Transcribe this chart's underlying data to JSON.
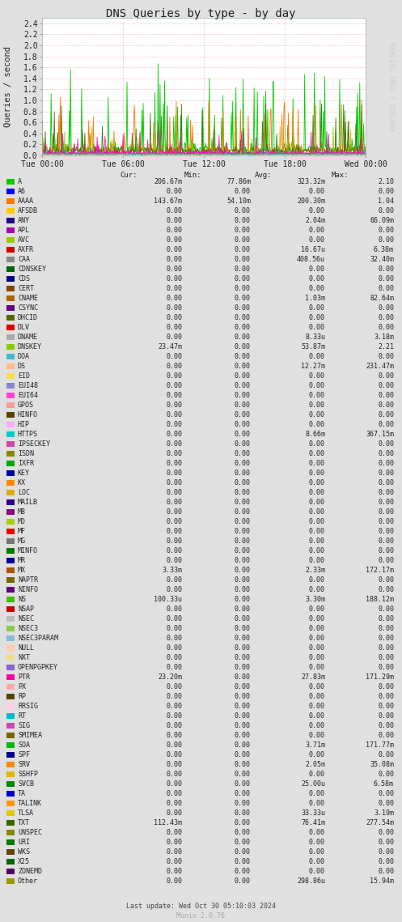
{
  "title": "DNS Queries by type - by day",
  "ylabel": "Queries / second",
  "watermark": "RRDTOOL / TOBI OETIKER",
  "footer": "Munin 2.0.76",
  "last_update": "Last update: Wed Oct 30 05:10:03 2024",
  "bg_color": "#e0e0e0",
  "plot_bg_color": "#ffffff",
  "yticks": [
    0.0,
    0.2,
    0.4,
    0.6,
    0.8,
    1.0,
    1.2,
    1.4,
    1.6,
    1.8,
    2.0,
    2.2,
    2.4
  ],
  "ylim": [
    0,
    2.5
  ],
  "xtick_labels": [
    "Tue 00:00",
    "Tue 06:00",
    "Tue 12:00",
    "Tue 18:00",
    "Wed 00:00"
  ],
  "entries": [
    {
      "name": "A",
      "color": "#00cc00",
      "cur": "206.67m",
      "min": "77.86m",
      "avg": "323.32m",
      "max": "2.10"
    },
    {
      "name": "A6",
      "color": "#0000ff",
      "cur": "0.00",
      "min": "0.00",
      "avg": "0.00",
      "max": "0.00"
    },
    {
      "name": "AAAA",
      "color": "#ff7700",
      "cur": "143.67m",
      "min": "54.10m",
      "avg": "200.30m",
      "max": "1.04"
    },
    {
      "name": "AFSDB",
      "color": "#ffcc00",
      "cur": "0.00",
      "min": "0.00",
      "avg": "0.00",
      "max": "0.00"
    },
    {
      "name": "ANY",
      "color": "#220088",
      "cur": "0.00",
      "min": "0.00",
      "avg": "2.04m",
      "max": "66.09m"
    },
    {
      "name": "APL",
      "color": "#aa00aa",
      "cur": "0.00",
      "min": "0.00",
      "avg": "0.00",
      "max": "0.00"
    },
    {
      "name": "AVC",
      "color": "#99cc00",
      "cur": "0.00",
      "min": "0.00",
      "avg": "0.00",
      "max": "0.00"
    },
    {
      "name": "AXFR",
      "color": "#cc0000",
      "cur": "0.00",
      "min": "0.00",
      "avg": "16.67u",
      "max": "6.38m"
    },
    {
      "name": "CAA",
      "color": "#888888",
      "cur": "0.00",
      "min": "0.00",
      "avg": "408.56u",
      "max": "32.40m"
    },
    {
      "name": "CDNSKEY",
      "color": "#006600",
      "cur": "0.00",
      "min": "0.00",
      "avg": "0.00",
      "max": "0.00"
    },
    {
      "name": "CDS",
      "color": "#000088",
      "cur": "0.00",
      "min": "0.00",
      "avg": "0.00",
      "max": "0.00"
    },
    {
      "name": "CERT",
      "color": "#884400",
      "cur": "0.00",
      "min": "0.00",
      "avg": "0.00",
      "max": "0.00"
    },
    {
      "name": "CNAME",
      "color": "#aa6600",
      "cur": "0.00",
      "min": "0.00",
      "avg": "1.03m",
      "max": "82.64m"
    },
    {
      "name": "CSYNC",
      "color": "#660088",
      "cur": "0.00",
      "min": "0.00",
      "avg": "0.00",
      "max": "0.00"
    },
    {
      "name": "DHCID",
      "color": "#556600",
      "cur": "0.00",
      "min": "0.00",
      "avg": "0.00",
      "max": "0.00"
    },
    {
      "name": "DLV",
      "color": "#dd0000",
      "cur": "0.00",
      "min": "0.00",
      "avg": "0.00",
      "max": "0.00"
    },
    {
      "name": "DNAME",
      "color": "#aaaaaa",
      "cur": "0.00",
      "min": "0.00",
      "avg": "8.33u",
      "max": "3.18m"
    },
    {
      "name": "DNSKEY",
      "color": "#88cc00",
      "cur": "23.47m",
      "min": "0.00",
      "avg": "53.87m",
      "max": "2.21"
    },
    {
      "name": "DOA",
      "color": "#44bbcc",
      "cur": "0.00",
      "min": "0.00",
      "avg": "0.00",
      "max": "0.00"
    },
    {
      "name": "DS",
      "color": "#ffbb88",
      "cur": "0.00",
      "min": "0.00",
      "avg": "12.27m",
      "max": "231.47m"
    },
    {
      "name": "EID",
      "color": "#ffdd44",
      "cur": "0.00",
      "min": "0.00",
      "avg": "0.00",
      "max": "0.00"
    },
    {
      "name": "EUI48",
      "color": "#8888cc",
      "cur": "0.00",
      "min": "0.00",
      "avg": "0.00",
      "max": "0.00"
    },
    {
      "name": "EUI64",
      "color": "#ff44cc",
      "cur": "0.00",
      "min": "0.00",
      "avg": "0.00",
      "max": "0.00"
    },
    {
      "name": "GPOS",
      "color": "#ff9999",
      "cur": "0.00",
      "min": "0.00",
      "avg": "0.00",
      "max": "0.00"
    },
    {
      "name": "HINFO",
      "color": "#554400",
      "cur": "0.00",
      "min": "0.00",
      "avg": "0.00",
      "max": "0.00"
    },
    {
      "name": "HIP",
      "color": "#ffaaff",
      "cur": "0.00",
      "min": "0.00",
      "avg": "0.00",
      "max": "0.00"
    },
    {
      "name": "HTTPS",
      "color": "#00cccc",
      "cur": "0.00",
      "min": "0.00",
      "avg": "8.66m",
      "max": "367.15m"
    },
    {
      "name": "IPSECKEY",
      "color": "#cc44aa",
      "cur": "0.00",
      "min": "0.00",
      "avg": "0.00",
      "max": "0.00"
    },
    {
      "name": "ISDN",
      "color": "#888800",
      "cur": "0.00",
      "min": "0.00",
      "avg": "0.00",
      "max": "0.00"
    },
    {
      "name": "IXFR",
      "color": "#00aa00",
      "cur": "0.00",
      "min": "0.00",
      "avg": "0.00",
      "max": "0.00"
    },
    {
      "name": "KEY",
      "color": "#0000aa",
      "cur": "0.00",
      "min": "0.00",
      "avg": "0.00",
      "max": "0.00"
    },
    {
      "name": "KX",
      "color": "#ff8800",
      "cur": "0.00",
      "min": "0.00",
      "avg": "0.00",
      "max": "0.00"
    },
    {
      "name": "LOC",
      "color": "#ddaa00",
      "cur": "0.00",
      "min": "0.00",
      "avg": "0.00",
      "max": "0.00"
    },
    {
      "name": "MAILB",
      "color": "#330088",
      "cur": "0.00",
      "min": "0.00",
      "avg": "0.00",
      "max": "0.00"
    },
    {
      "name": "MB",
      "color": "#880088",
      "cur": "0.00",
      "min": "0.00",
      "avg": "0.00",
      "max": "0.00"
    },
    {
      "name": "MD",
      "color": "#aacc00",
      "cur": "0.00",
      "min": "0.00",
      "avg": "0.00",
      "max": "0.00"
    },
    {
      "name": "MF",
      "color": "#ee0000",
      "cur": "0.00",
      "min": "0.00",
      "avg": "0.00",
      "max": "0.00"
    },
    {
      "name": "MG",
      "color": "#777777",
      "cur": "0.00",
      "min": "0.00",
      "avg": "0.00",
      "max": "0.00"
    },
    {
      "name": "MINFO",
      "color": "#007700",
      "cur": "0.00",
      "min": "0.00",
      "avg": "0.00",
      "max": "0.00"
    },
    {
      "name": "MR",
      "color": "#000099",
      "cur": "0.00",
      "min": "0.00",
      "avg": "0.00",
      "max": "0.00"
    },
    {
      "name": "MX",
      "color": "#aa5500",
      "cur": "3.33m",
      "min": "0.00",
      "avg": "2.33m",
      "max": "172.17m"
    },
    {
      "name": "NAPTR",
      "color": "#776600",
      "cur": "0.00",
      "min": "0.00",
      "avg": "0.00",
      "max": "0.00"
    },
    {
      "name": "NINFO",
      "color": "#660077",
      "cur": "0.00",
      "min": "0.00",
      "avg": "0.00",
      "max": "0.00"
    },
    {
      "name": "NS",
      "color": "#44bb00",
      "cur": "100.33u",
      "min": "0.00",
      "avg": "3.30m",
      "max": "188.12m"
    },
    {
      "name": "NSAP",
      "color": "#cc0000",
      "cur": "0.00",
      "min": "0.00",
      "avg": "0.00",
      "max": "0.00"
    },
    {
      "name": "NSEC",
      "color": "#bbbbbb",
      "cur": "0.00",
      "min": "0.00",
      "avg": "0.00",
      "max": "0.00"
    },
    {
      "name": "NSEC3",
      "color": "#88cc44",
      "cur": "0.00",
      "min": "0.00",
      "avg": "0.00",
      "max": "0.00"
    },
    {
      "name": "NSEC3PARAM",
      "color": "#88bbcc",
      "cur": "0.00",
      "min": "0.00",
      "avg": "0.00",
      "max": "0.00"
    },
    {
      "name": "NULL",
      "color": "#ffccaa",
      "cur": "0.00",
      "min": "0.00",
      "avg": "0.00",
      "max": "0.00"
    },
    {
      "name": "NXT",
      "color": "#eedd88",
      "cur": "0.00",
      "min": "0.00",
      "avg": "0.00",
      "max": "0.00"
    },
    {
      "name": "OPENPGPKEY",
      "color": "#8866cc",
      "cur": "0.00",
      "min": "0.00",
      "avg": "0.00",
      "max": "0.00"
    },
    {
      "name": "PTR",
      "color": "#ff00aa",
      "cur": "23.20m",
      "min": "0.00",
      "avg": "27.83m",
      "max": "171.29m"
    },
    {
      "name": "PX",
      "color": "#ffaaaa",
      "cur": "0.00",
      "min": "0.00",
      "avg": "0.00",
      "max": "0.00"
    },
    {
      "name": "RP",
      "color": "#554400",
      "cur": "0.00",
      "min": "0.00",
      "avg": "0.00",
      "max": "0.00"
    },
    {
      "name": "RRSIG",
      "color": "#ffccee",
      "cur": "0.00",
      "min": "0.00",
      "avg": "0.00",
      "max": "0.00"
    },
    {
      "name": "RT",
      "color": "#00bbcc",
      "cur": "0.00",
      "min": "0.00",
      "avg": "0.00",
      "max": "0.00"
    },
    {
      "name": "SIG",
      "color": "#cc44bb",
      "cur": "0.00",
      "min": "0.00",
      "avg": "0.00",
      "max": "0.00"
    },
    {
      "name": "SMIMEA",
      "color": "#776600",
      "cur": "0.00",
      "min": "0.00",
      "avg": "0.00",
      "max": "0.00"
    },
    {
      "name": "SOA",
      "color": "#00bb00",
      "cur": "0.00",
      "min": "0.00",
      "avg": "3.71m",
      "max": "171.77m"
    },
    {
      "name": "SPF",
      "color": "#000088",
      "cur": "0.00",
      "min": "0.00",
      "avg": "0.00",
      "max": "0.00"
    },
    {
      "name": "SRV",
      "color": "#ff8800",
      "cur": "0.00",
      "min": "0.00",
      "avg": "2.05m",
      "max": "35.08m"
    },
    {
      "name": "SSHFP",
      "color": "#ddbb00",
      "cur": "0.00",
      "min": "0.00",
      "avg": "0.00",
      "max": "0.00"
    },
    {
      "name": "SVCB",
      "color": "#008800",
      "cur": "0.00",
      "min": "0.00",
      "avg": "25.00u",
      "max": "6.58m"
    },
    {
      "name": "TA",
      "color": "#0000cc",
      "cur": "0.00",
      "min": "0.00",
      "avg": "0.00",
      "max": "0.00"
    },
    {
      "name": "TALINK",
      "color": "#ff9900",
      "cur": "0.00",
      "min": "0.00",
      "avg": "0.00",
      "max": "0.00"
    },
    {
      "name": "TLSA",
      "color": "#ddcc00",
      "cur": "0.00",
      "min": "0.00",
      "avg": "33.33u",
      "max": "3.19m"
    },
    {
      "name": "TXT",
      "color": "#336600",
      "cur": "112.43m",
      "min": "0.00",
      "avg": "76.41m",
      "max": "277.54m"
    },
    {
      "name": "UNSPEC",
      "color": "#888800",
      "cur": "0.00",
      "min": "0.00",
      "avg": "0.00",
      "max": "0.00"
    },
    {
      "name": "URI",
      "color": "#007700",
      "cur": "0.00",
      "min": "0.00",
      "avg": "0.00",
      "max": "0.00"
    },
    {
      "name": "WKS",
      "color": "#664400",
      "cur": "0.00",
      "min": "0.00",
      "avg": "0.00",
      "max": "0.00"
    },
    {
      "name": "X25",
      "color": "#006600",
      "cur": "0.00",
      "min": "0.00",
      "avg": "0.00",
      "max": "0.00"
    },
    {
      "name": "ZONEMD",
      "color": "#550066",
      "cur": "0.00",
      "min": "0.00",
      "avg": "0.00",
      "max": "0.00"
    },
    {
      "name": "Other",
      "color": "#999900",
      "cur": "0.00",
      "min": "0.00",
      "avg": "298.86u",
      "max": "15.94m"
    }
  ]
}
